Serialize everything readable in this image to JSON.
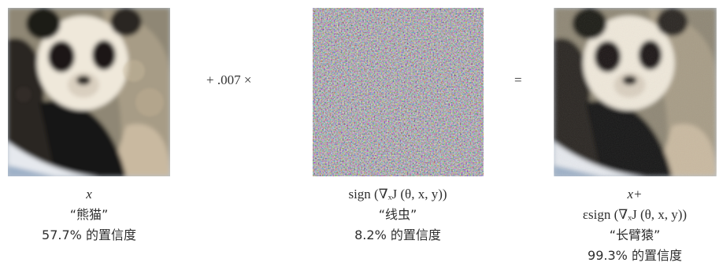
{
  "operator_left": "+ .007 ×",
  "operator_right": "=",
  "panels": [
    {
      "image_icon": "panda-photo",
      "formula": "x",
      "label": "“熊猫”",
      "confidence": "57.7% 的置信度"
    },
    {
      "image_icon": "noise-pattern",
      "formula": "sign (∇ₓJ (θ, x, y))",
      "label": "“线虫”",
      "confidence": "8.2% 的置信度"
    },
    {
      "image_icon": "panda-photo-perturbed",
      "formula_line1": "x+",
      "formula_line2": "εsign (∇ₓJ (θ, x, y))",
      "label": "“长臂猿”",
      "confidence": "99.3% 的置信度"
    }
  ]
}
